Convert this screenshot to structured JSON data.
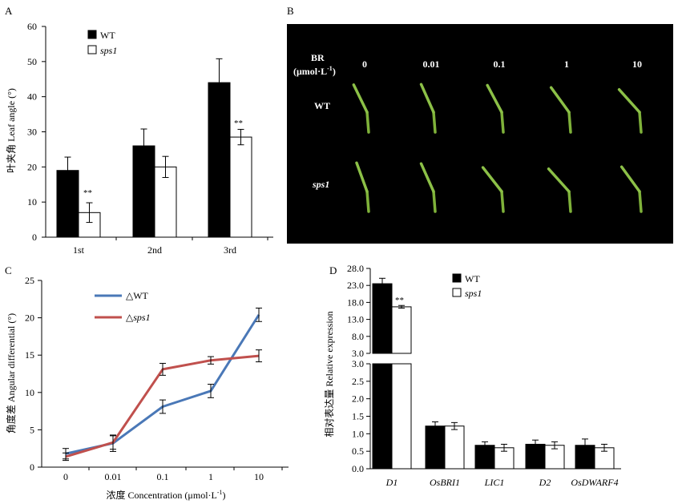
{
  "panels": {
    "a": {
      "letter": "A",
      "ylabel": "叶夹角 Leaf angle (°)",
      "legend": [
        "WT",
        "sps1"
      ],
      "sig": [
        "**",
        "**"
      ]
    },
    "b": {
      "letter": "B",
      "br_label_1": "BR",
      "br_label_2": "(μmol·L",
      "br_label_sup": "-1",
      "br_label_3": ")",
      "concentrations": [
        "0",
        "0.01",
        "0.1",
        "1",
        "10"
      ],
      "rows": [
        "WT",
        "sps1"
      ]
    },
    "c": {
      "letter": "C",
      "ylabel": "角度差 Angular differential (°)",
      "xlabel_1": "浓度 Concentration (μmol·L",
      "xlabel_sup": "-1",
      "xlabel_2": ")",
      "legend": [
        "△WT",
        "△sps1"
      ]
    },
    "d": {
      "letter": "D",
      "ylabel": "相对表达量 Relative expression",
      "legend": [
        "WT",
        "sps1"
      ],
      "sig": "**"
    }
  },
  "chart_data": [
    {
      "id": "A",
      "type": "bar",
      "categories": [
        "1st",
        "2nd",
        "3rd"
      ],
      "series": [
        {
          "name": "WT",
          "color": "#000000",
          "values": [
            19,
            26,
            44
          ],
          "errors": [
            3.8,
            4.8,
            6.8
          ]
        },
        {
          "name": "sps1",
          "color": "#ffffff",
          "values": [
            7,
            20,
            28.5
          ],
          "errors": [
            2.8,
            3,
            2.2
          ]
        }
      ],
      "ylim": [
        0,
        60
      ],
      "yticks": [
        0,
        10,
        20,
        30,
        40,
        50,
        60
      ]
    },
    {
      "id": "C",
      "type": "line",
      "x": [
        "0",
        "0.01",
        "0.1",
        "1",
        "10"
      ],
      "series": [
        {
          "name": "△WT",
          "color": "#4a78b7",
          "values": [
            1.8,
            3.2,
            8.1,
            10.2,
            20.4
          ],
          "errors": [
            0.7,
            1.1,
            0.9,
            0.9,
            0.9
          ]
        },
        {
          "name": "△sps1",
          "color": "#c0504d",
          "values": [
            1.4,
            3.3,
            13.1,
            14.3,
            14.9
          ],
          "errors": [
            0.5,
            0.9,
            0.8,
            0.5,
            0.8
          ]
        }
      ],
      "ylim": [
        0,
        25
      ],
      "yticks": [
        0,
        5,
        10,
        15,
        20,
        25
      ]
    },
    {
      "id": "D",
      "type": "bar",
      "categories": [
        "D1",
        "OsBRI1",
        "LIC1",
        "D2",
        "OsDWARF4"
      ],
      "series": [
        {
          "name": "WT",
          "color": "#000000",
          "values": [
            23.5,
            1.22,
            0.67,
            0.7,
            0.67
          ],
          "errors": [
            1.6,
            0.12,
            0.1,
            0.12,
            0.18
          ]
        },
        {
          "name": "sps1",
          "color": "#ffffff",
          "values": [
            16.7,
            1.22,
            0.6,
            0.67,
            0.6
          ],
          "errors": [
            0.4,
            0.1,
            0.1,
            0.1,
            0.1
          ]
        }
      ],
      "y_break": true,
      "ylim_lower": [
        0,
        3.0
      ],
      "yticks_lower": [
        "0.0",
        "0.5",
        "1.0",
        "1.5",
        "2.0",
        "2.5",
        "3.0"
      ],
      "ylim_upper": [
        3.0,
        28.0
      ],
      "yticks_upper": [
        "3.0",
        "8.0",
        "13.0",
        "18.0",
        "23.0",
        "28.0"
      ]
    }
  ]
}
